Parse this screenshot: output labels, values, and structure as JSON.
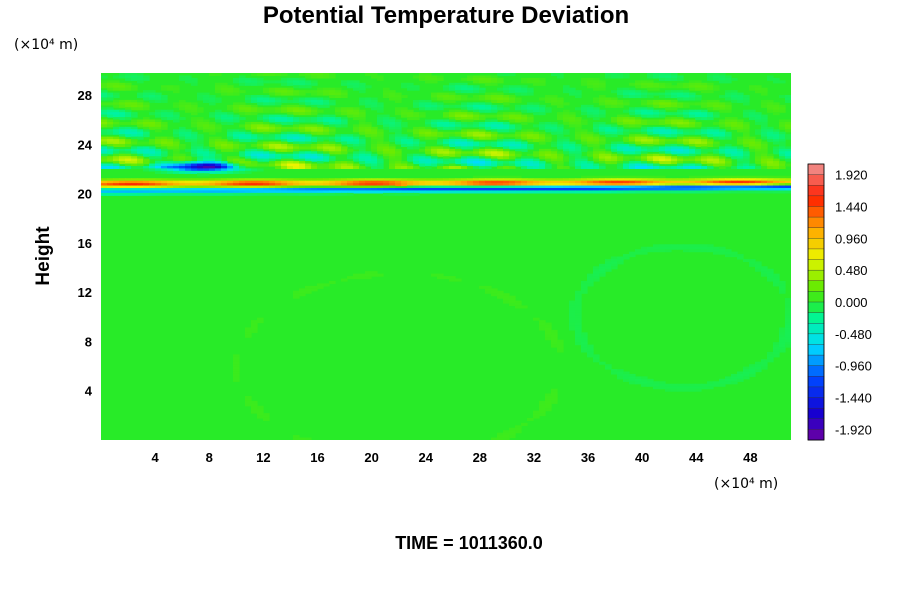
{
  "chart_data": {
    "type": "heatmap",
    "title": "Potential Temperature Deviation",
    "ylabel": "Height",
    "x_unit": "(×10⁴ m)",
    "y_unit": "(×10⁴ m)",
    "time_label": "TIME = 1011360.0",
    "x_ticks": [
      "4",
      "8",
      "12",
      "16",
      "20",
      "24",
      "28",
      "32",
      "36",
      "40",
      "44",
      "48"
    ],
    "x_tick_values": [
      4,
      8,
      12,
      16,
      20,
      24,
      28,
      32,
      36,
      40,
      44,
      48
    ],
    "y_ticks": [
      "4",
      "8",
      "12",
      "16",
      "20",
      "24",
      "28"
    ],
    "y_tick_values": [
      4,
      8,
      12,
      16,
      20,
      24,
      28
    ],
    "xlim": [
      0,
      51
    ],
    "ylim": [
      0,
      29.8
    ],
    "colorbar": {
      "labels": [
        "1.920",
        "1.440",
        "0.960",
        "0.480",
        "0.000",
        "-0.480",
        "-0.960",
        "-1.440",
        "-1.920"
      ],
      "values": [
        1.92,
        1.44,
        0.96,
        0.48,
        0.0,
        -0.48,
        -0.96,
        -1.44,
        -1.92
      ],
      "range": [
        -2.08,
        2.08
      ],
      "levels": 26
    },
    "field_description_features": [
      {
        "feature": "background",
        "value": 0.0
      },
      {
        "feature": "layer_height",
        "y": 20.3
      },
      {
        "feature": "positive_band_y",
        "y": 20.8,
        "value": 1.6
      },
      {
        "feature": "negative_band_y",
        "y": 20.2,
        "value": -1.4
      },
      {
        "feature": "upper_negative_blob",
        "x_center": 7.5,
        "y": 22.2,
        "value": -1.9
      },
      {
        "feature": "upper_wave_region",
        "y_from": 22,
        "y_to": 29.8,
        "amplitude": 0.5
      }
    ]
  },
  "colors": {
    "background": "#ffffff",
    "frame": "#000000"
  }
}
